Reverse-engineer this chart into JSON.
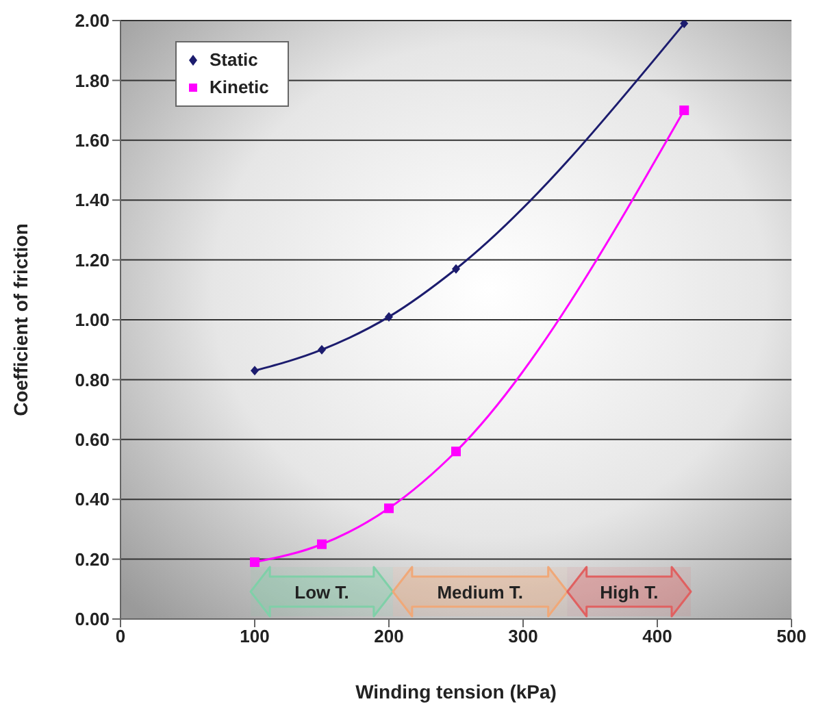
{
  "chart_data": {
    "type": "line",
    "xlabel": "Winding tension (kPa)",
    "ylabel": "Coefficient of friction",
    "x": [
      100,
      150,
      200,
      250,
      420
    ],
    "series": [
      {
        "name": "Static",
        "color": "#1c1c6e",
        "marker": "diamond",
        "values": [
          0.83,
          0.9,
          1.01,
          1.17,
          1.99
        ]
      },
      {
        "name": "Kinetic",
        "color": "#ff00ff",
        "marker": "square",
        "values": [
          0.19,
          0.25,
          0.37,
          0.56,
          1.7
        ]
      }
    ],
    "xlim": [
      0,
      500
    ],
    "xticks": [
      0,
      100,
      200,
      300,
      400,
      500
    ],
    "ylim": [
      0,
      2
    ],
    "yticks": [
      {
        "value": 0,
        "label": "0.00"
      },
      {
        "value": 0.2,
        "label": "0.20"
      },
      {
        "value": 0.4,
        "label": "0.40"
      },
      {
        "value": 0.6,
        "label": "0.60"
      },
      {
        "value": 0.8,
        "label": "0.80"
      },
      {
        "value": 1,
        "label": "1.00"
      },
      {
        "value": 1.2,
        "label": "1.20"
      },
      {
        "value": 1.4,
        "label": "1.40"
      },
      {
        "value": 1.6,
        "label": "1.60"
      },
      {
        "value": 1.8,
        "label": "1.80"
      },
      {
        "value": 2,
        "label": "2.00"
      }
    ],
    "bands": [
      {
        "axis": "x",
        "from": 97,
        "to": 203,
        "label": "Low T.",
        "color": "#7fd0a8"
      },
      {
        "axis": "x",
        "from": 203,
        "to": 333,
        "label": "Medium T.",
        "color": "#f0a878"
      },
      {
        "axis": "x",
        "from": 333,
        "to": 425,
        "label": "High T.",
        "color": "#e06060"
      }
    ],
    "grid": "y",
    "legend": "top left"
  }
}
